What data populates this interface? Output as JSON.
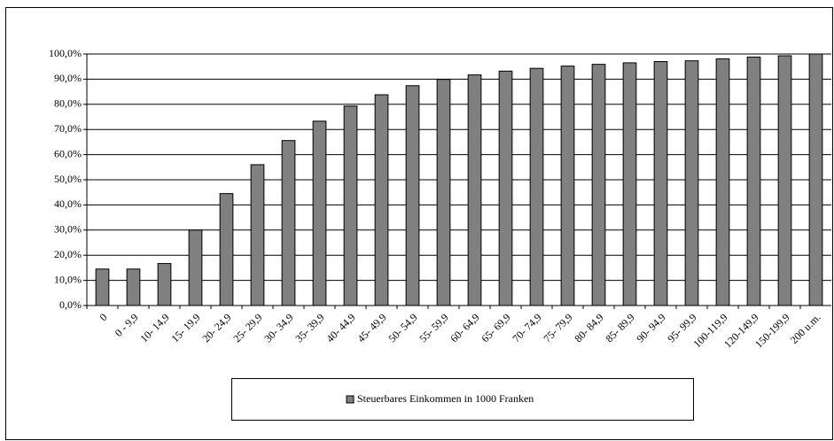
{
  "chart_data": {
    "type": "bar",
    "categories": [
      "0",
      "0 - 9,9",
      "10- 14,9",
      "15- 19,9",
      "20- 24,9",
      "25- 29,9",
      "30- 34,9",
      "35- 39,9",
      "40- 44,9",
      "45- 49,9",
      "50- 54,9",
      "55- 59,9",
      "60- 64,9",
      "65- 69,9",
      "70- 74,9",
      "75- 79,9",
      "80- 84,9",
      "85- 89,9",
      "90- 94,9",
      "95- 99,9",
      "100-119,9",
      "120-149,9",
      "150-199,9",
      "200 u.m."
    ],
    "series": [
      {
        "name": "Steuerbares Einkommen in 1000 Franken",
        "color": "#808080",
        "values": [
          14.5,
          14.5,
          16.7,
          30,
          44.5,
          56,
          65.6,
          73.3,
          79.3,
          83.8,
          87.4,
          89.9,
          91.7,
          93.2,
          94.3,
          95.2,
          95.9,
          96.5,
          97.0,
          97.3,
          98.1,
          98.8,
          99.3,
          100
        ]
      }
    ],
    "ylim": [
      0,
      100
    ],
    "yticks": [
      {
        "value": 0,
        "label": "0,0%"
      },
      {
        "value": 10,
        "label": "10,0%"
      },
      {
        "value": 20,
        "label": "20,0%"
      },
      {
        "value": 30,
        "label": "30,0%"
      },
      {
        "value": 40,
        "label": "40,0%"
      },
      {
        "value": 50,
        "label": "50,0%"
      },
      {
        "value": 60,
        "label": "60,0%"
      },
      {
        "value": 70,
        "label": "70,0%"
      },
      {
        "value": 80,
        "label": "80,0%"
      },
      {
        "value": 90,
        "label": "90,0%"
      },
      {
        "value": 100,
        "label": "100,0%"
      }
    ],
    "grid": true,
    "legend": "bottom"
  }
}
